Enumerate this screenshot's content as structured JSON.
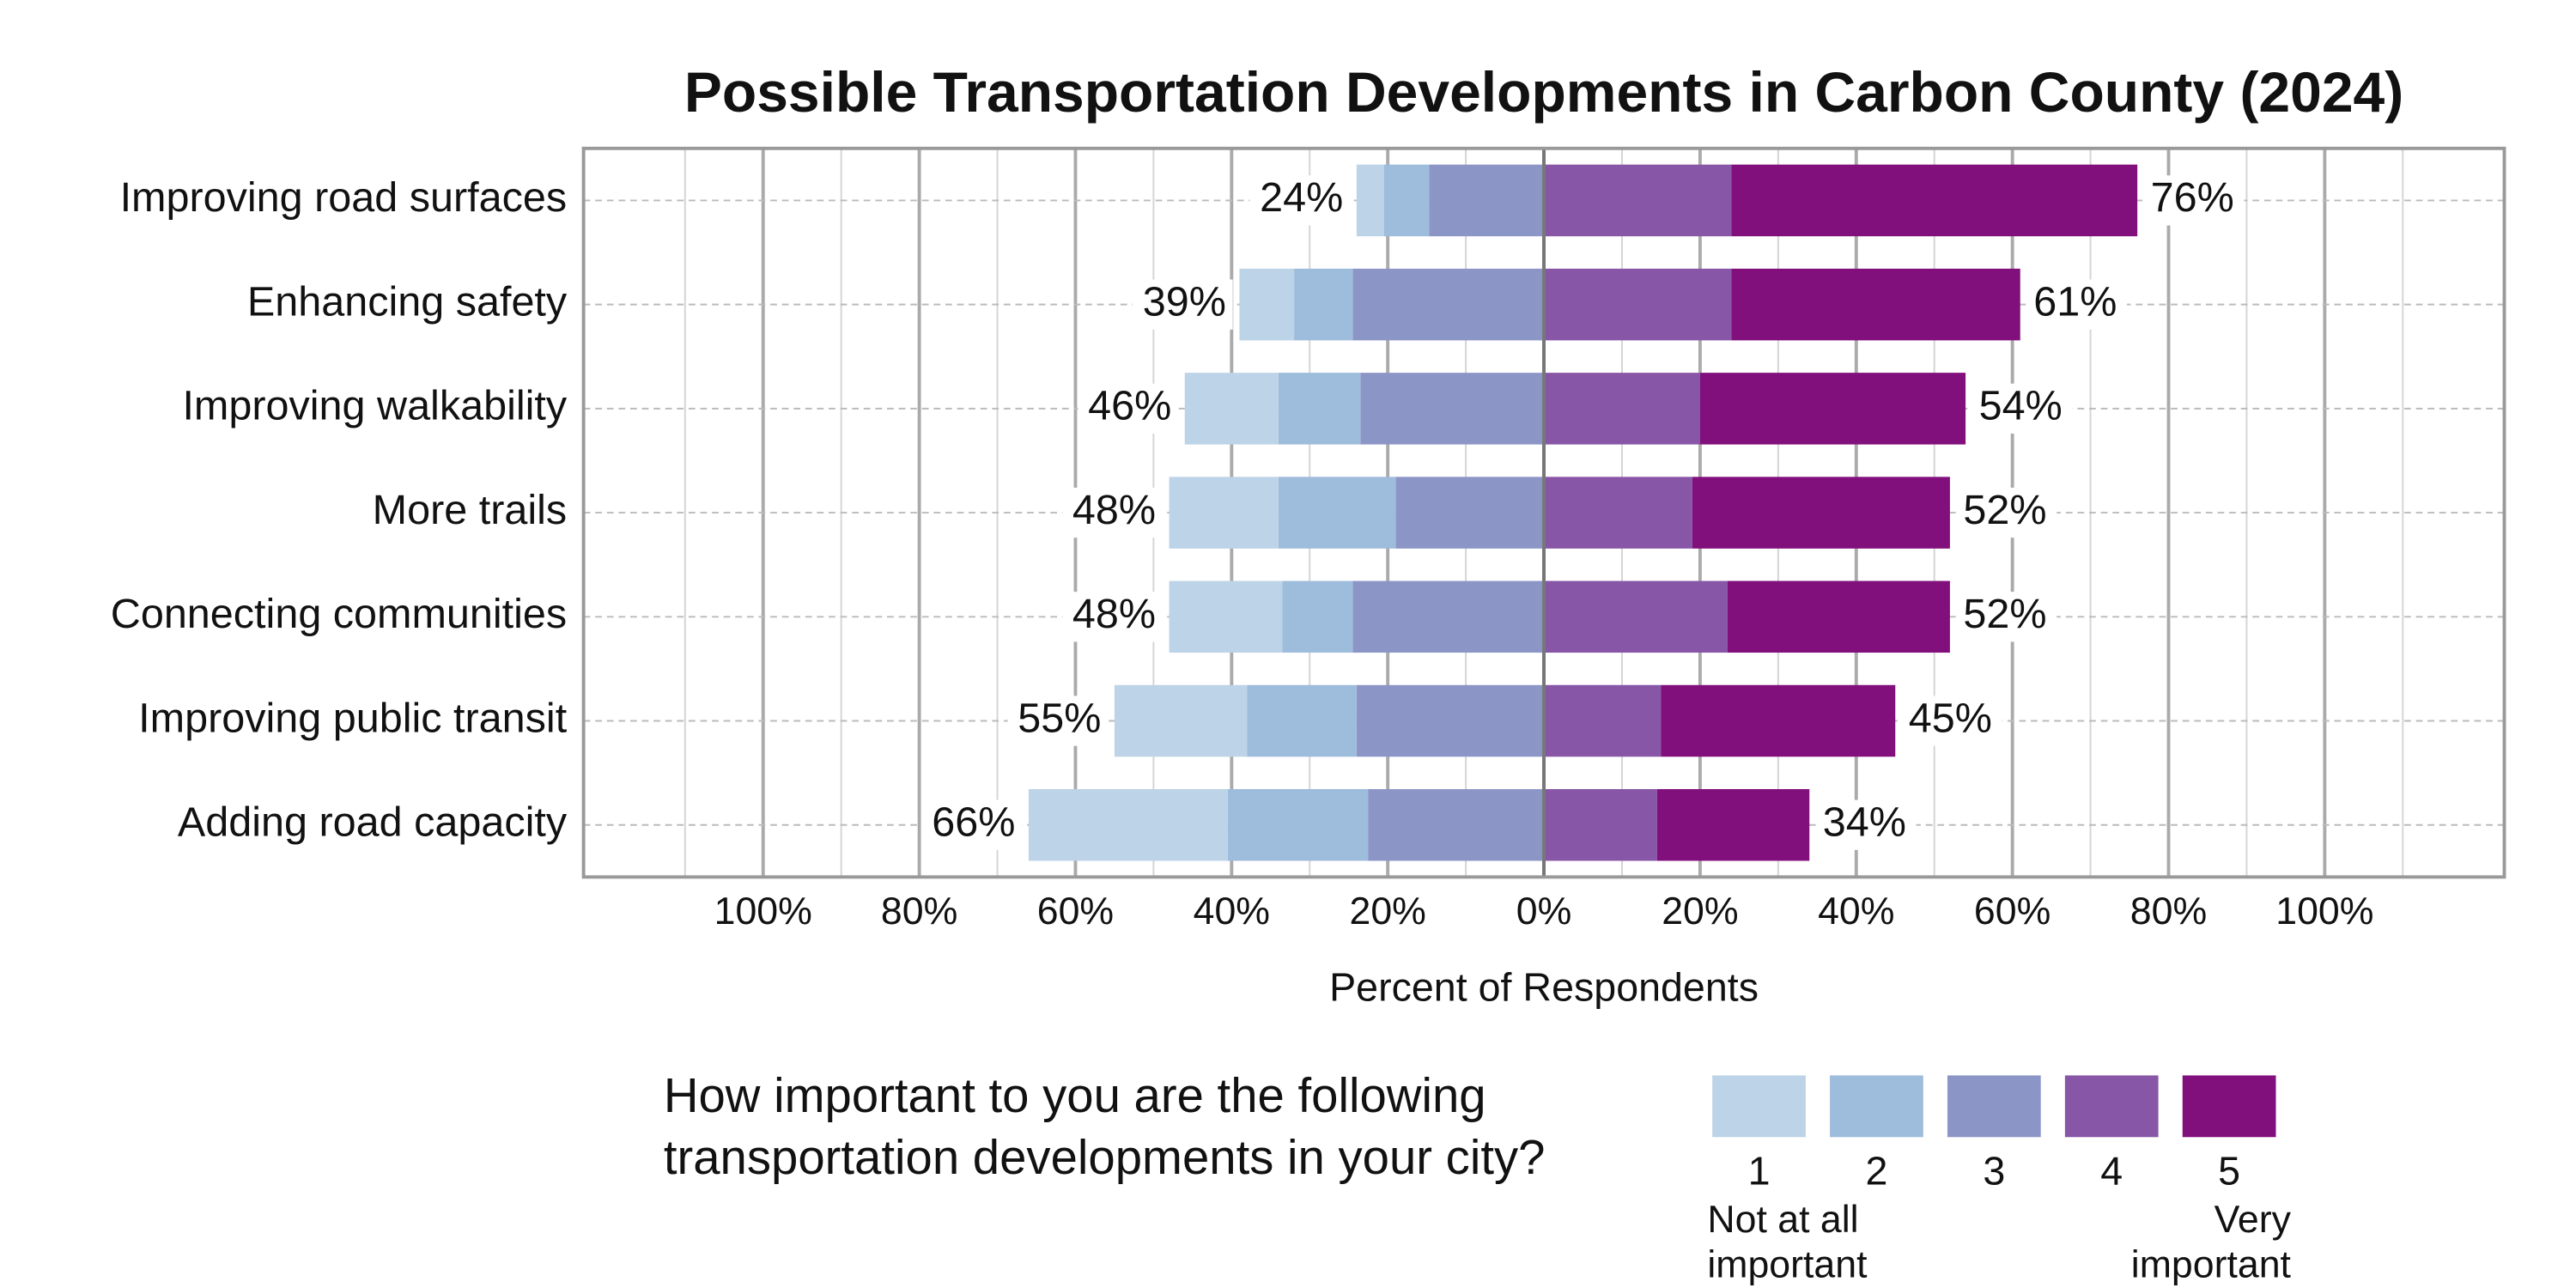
{
  "chart_data": {
    "type": "diverging_stacked_bar",
    "title": "Possible Transportation Developments in Carbon County (2024)",
    "x_label": "Percent of Respondents",
    "categories": [
      "Improving road surfaces",
      "Enhancing safety",
      "Improving walkability",
      "More trails",
      "Connecting communities",
      "Improving public transit",
      "Adding road capacity"
    ],
    "series": [
      {
        "name": "1",
        "color": "#bdd3e7",
        "side": "negative",
        "values": [
          3.5,
          7,
          12,
          14,
          14.5,
          17,
          25.5
        ]
      },
      {
        "name": "2",
        "color": "#9ebcdb",
        "side": "negative",
        "values": [
          5.8,
          7.5,
          10.5,
          15,
          9,
          14,
          18
        ]
      },
      {
        "name": "3",
        "color": "#8c96c6",
        "side": "negative",
        "values": [
          14.7,
          24.5,
          23.5,
          19,
          24.5,
          24,
          22.5
        ]
      },
      {
        "name": "4",
        "color": "#8856a7",
        "side": "positive",
        "values": [
          24,
          24,
          20,
          19,
          23.5,
          15,
          14.5
        ]
      },
      {
        "name": "5",
        "color": "#810f7c",
        "side": "positive",
        "values": [
          52,
          37,
          34,
          33,
          28.5,
          30,
          19.5
        ]
      }
    ],
    "negative_totals": {
      "values": [
        24,
        39,
        46,
        48,
        48,
        55,
        66
      ],
      "value_labels": [
        "24%",
        "39%",
        "46%",
        "48%",
        "48%",
        "55%",
        "66%"
      ]
    },
    "positive_totals": {
      "values": [
        76,
        61,
        54,
        52,
        52,
        45,
        34
      ],
      "value_labels": [
        "76%",
        "61%",
        "54%",
        "52%",
        "52%",
        "45%",
        "34%"
      ]
    },
    "xlim": [
      -123,
      123
    ],
    "xticks": [
      {
        "value": -100,
        "label": "100%"
      },
      {
        "value": -80,
        "label": "80%"
      },
      {
        "value": -60,
        "label": "60%"
      },
      {
        "value": -40,
        "label": "40%"
      },
      {
        "value": -20,
        "label": "20%"
      },
      {
        "value": 0,
        "label": "0%"
      },
      {
        "value": 20,
        "label": "20%"
      },
      {
        "value": 40,
        "label": "40%"
      },
      {
        "value": 60,
        "label": "60%"
      },
      {
        "value": 80,
        "label": "80%"
      },
      {
        "value": 100,
        "label": "100%"
      }
    ],
    "xminor": [
      -110,
      -90,
      -70,
      -50,
      -30,
      -10,
      10,
      30,
      50,
      70,
      90,
      110
    ],
    "grid": true,
    "legend_title": "How important to you are the following transportation developments in your city?",
    "legend_low_label": "Not at all important",
    "legend_high_label": "Very important"
  }
}
